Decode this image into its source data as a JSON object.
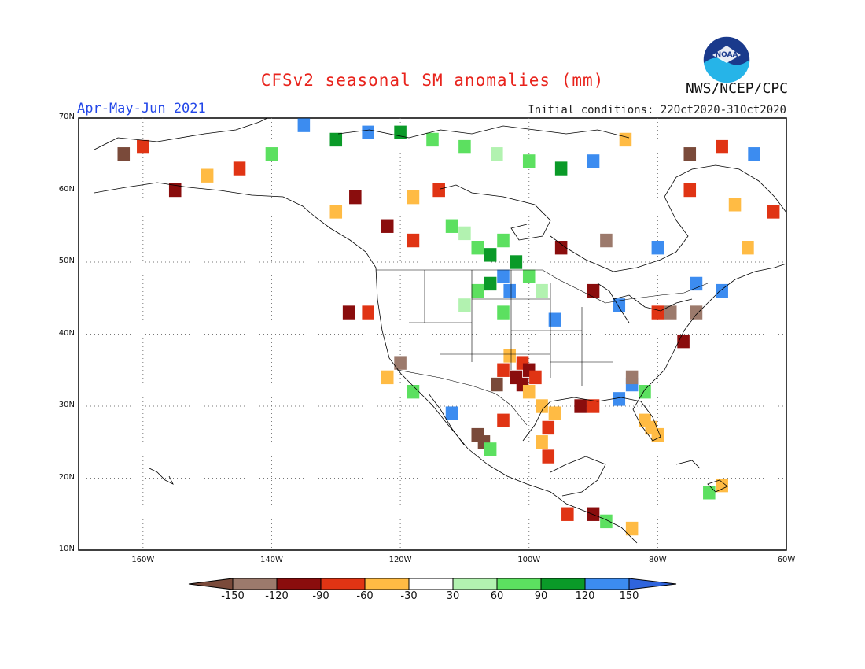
{
  "title": "CFSv2 seasonal SM anomalies (mm)",
  "period": "Apr-May-Jun 2021",
  "initial_conditions": "Initial conditions: 22Oct2020-31Oct2020",
  "organization": "NWS/NCEP/CPC",
  "logo_text": "NOAA",
  "map": {
    "lat_labels": [
      "70N",
      "60N",
      "50N",
      "40N",
      "30N",
      "20N",
      "10N"
    ],
    "lon_labels": [
      "160W",
      "140W",
      "120W",
      "100W",
      "80W",
      "60W"
    ],
    "lat_range": [
      10,
      70
    ],
    "lon_range": [
      -170,
      -60
    ]
  },
  "colorbar": {
    "labels": [
      "-150",
      "-120",
      "-90",
      "-60",
      "-30",
      "30",
      "60",
      "90",
      "120",
      "150"
    ],
    "colors": [
      "#7a4a3a",
      "#9c7a6c",
      "#8a0d0d",
      "#e03414",
      "#ffbb44",
      "#ffffff",
      "#b2f2b0",
      "#5ce060",
      "#0a9a28",
      "#3c8cf0",
      "#2f64dc"
    ]
  },
  "anomaly_cells": [
    {
      "lon": -108,
      "lat": 52,
      "c": "#5ce060"
    },
    {
      "lon": -106,
      "lat": 51,
      "c": "#0a9a28"
    },
    {
      "lon": -104,
      "lat": 53,
      "c": "#5ce060"
    },
    {
      "lon": -110,
      "lat": 54,
      "c": "#b2f2b0"
    },
    {
      "lon": -112,
      "lat": 55,
      "c": "#5ce060"
    },
    {
      "lon": -102,
      "lat": 50,
      "c": "#0a9a28"
    },
    {
      "lon": -100,
      "lat": 48,
      "c": "#5ce060"
    },
    {
      "lon": -104,
      "lat": 48,
      "c": "#3c8cf0"
    },
    {
      "lon": -106,
      "lat": 47,
      "c": "#0a9a28"
    },
    {
      "lon": -108,
      "lat": 46,
      "c": "#5ce060"
    },
    {
      "lon": -103,
      "lat": 46,
      "c": "#3c8cf0"
    },
    {
      "lon": -98,
      "lat": 46,
      "c": "#b2f2b0"
    },
    {
      "lon": -110,
      "lat": 44,
      "c": "#b2f2b0"
    },
    {
      "lon": -96,
      "lat": 42,
      "c": "#3c8cf0"
    },
    {
      "lon": -104,
      "lat": 43,
      "c": "#5ce060"
    },
    {
      "lon": -101,
      "lat": 36,
      "c": "#e03414"
    },
    {
      "lon": -100,
      "lat": 35,
      "c": "#8a0d0d"
    },
    {
      "lon": -102,
      "lat": 34,
      "c": "#8a0d0d"
    },
    {
      "lon": -101,
      "lat": 33,
      "c": "#8a0d0d"
    },
    {
      "lon": -99,
      "lat": 34,
      "c": "#e03414"
    },
    {
      "lon": -100,
      "lat": 32,
      "c": "#ffbb44"
    },
    {
      "lon": -103,
      "lat": 37,
      "c": "#ffbb44"
    },
    {
      "lon": -104,
      "lat": 35,
      "c": "#e03414"
    },
    {
      "lon": -105,
      "lat": 33,
      "c": "#7a4a3a"
    },
    {
      "lon": -98,
      "lat": 30,
      "c": "#ffbb44"
    },
    {
      "lon": -96,
      "lat": 29,
      "c": "#ffbb44"
    },
    {
      "lon": -97,
      "lat": 27,
      "c": "#e03414"
    },
    {
      "lon": -98,
      "lat": 25,
      "c": "#ffbb44"
    },
    {
      "lon": -97,
      "lat": 23,
      "c": "#e03414"
    },
    {
      "lon": -92,
      "lat": 30,
      "c": "#8a0d0d"
    },
    {
      "lon": -90,
      "lat": 30,
      "c": "#e03414"
    },
    {
      "lon": -82,
      "lat": 28,
      "c": "#ffbb44"
    },
    {
      "lon": -81,
      "lat": 27,
      "c": "#ffbb44"
    },
    {
      "lon": -80,
      "lat": 26,
      "c": "#ffbb44"
    },
    {
      "lon": -76,
      "lat": 39,
      "c": "#8a0d0d"
    },
    {
      "lon": -78,
      "lat": 43,
      "c": "#9c7a6c"
    },
    {
      "lon": -74,
      "lat": 43,
      "c": "#9c7a6c"
    },
    {
      "lon": -80,
      "lat": 43,
      "c": "#e03414"
    },
    {
      "lon": -84,
      "lat": 33,
      "c": "#3c8cf0"
    },
    {
      "lon": -86,
      "lat": 31,
      "c": "#3c8cf0"
    },
    {
      "lon": -82,
      "lat": 32,
      "c": "#5ce060"
    },
    {
      "lon": -84,
      "lat": 34,
      "c": "#9c7a6c"
    },
    {
      "lon": -122,
      "lat": 34,
      "c": "#ffbb44"
    },
    {
      "lon": -120,
      "lat": 36,
      "c": "#9c7a6c"
    },
    {
      "lon": -118,
      "lat": 32,
      "c": "#5ce060"
    },
    {
      "lon": -108,
      "lat": 26,
      "c": "#7a4a3a"
    },
    {
      "lon": -107,
      "lat": 25,
      "c": "#7a4a3a"
    },
    {
      "lon": -106,
      "lat": 24,
      "c": "#5ce060"
    },
    {
      "lon": -112,
      "lat": 29,
      "c": "#3c8cf0"
    },
    {
      "lon": -104,
      "lat": 28,
      "c": "#e03414"
    },
    {
      "lon": -94,
      "lat": 15,
      "c": "#e03414"
    },
    {
      "lon": -90,
      "lat": 15,
      "c": "#8a0d0d"
    },
    {
      "lon": -88,
      "lat": 14,
      "c": "#5ce060"
    },
    {
      "lon": -84,
      "lat": 13,
      "c": "#ffbb44"
    },
    {
      "lon": -155,
      "lat": 60,
      "c": "#8a0d0d"
    },
    {
      "lon": -150,
      "lat": 62,
      "c": "#ffbb44"
    },
    {
      "lon": -145,
      "lat": 63,
      "c": "#e03414"
    },
    {
      "lon": -160,
      "lat": 66,
      "c": "#e03414"
    },
    {
      "lon": -163,
      "lat": 65,
      "c": "#7a4a3a"
    },
    {
      "lon": -140,
      "lat": 65,
      "c": "#5ce060"
    },
    {
      "lon": -135,
      "lat": 69,
      "c": "#3c8cf0"
    },
    {
      "lon": -130,
      "lat": 67,
      "c": "#0a9a28"
    },
    {
      "lon": -125,
      "lat": 68,
      "c": "#3c8cf0"
    },
    {
      "lon": -120,
      "lat": 68,
      "c": "#0a9a28"
    },
    {
      "lon": -115,
      "lat": 67,
      "c": "#5ce060"
    },
    {
      "lon": -110,
      "lat": 66,
      "c": "#5ce060"
    },
    {
      "lon": -105,
      "lat": 65,
      "c": "#b2f2b0"
    },
    {
      "lon": -100,
      "lat": 64,
      "c": "#5ce060"
    },
    {
      "lon": -95,
      "lat": 63,
      "c": "#0a9a28"
    },
    {
      "lon": -90,
      "lat": 64,
      "c": "#3c8cf0"
    },
    {
      "lon": -85,
      "lat": 67,
      "c": "#ffbb44"
    },
    {
      "lon": -75,
      "lat": 65,
      "c": "#7a4a3a"
    },
    {
      "lon": -70,
      "lat": 66,
      "c": "#e03414"
    },
    {
      "lon": -65,
      "lat": 65,
      "c": "#3c8cf0"
    },
    {
      "lon": -75,
      "lat": 60,
      "c": "#e03414"
    },
    {
      "lon": -68,
      "lat": 58,
      "c": "#ffbb44"
    },
    {
      "lon": -62,
      "lat": 57,
      "c": "#e03414"
    },
    {
      "lon": -66,
      "lat": 52,
      "c": "#ffbb44"
    },
    {
      "lon": -80,
      "lat": 52,
      "c": "#3c8cf0"
    },
    {
      "lon": -88,
      "lat": 53,
      "c": "#9c7a6c"
    },
    {
      "lon": -95,
      "lat": 52,
      "c": "#8a0d0d"
    },
    {
      "lon": -118,
      "lat": 53,
      "c": "#e03414"
    },
    {
      "lon": -122,
      "lat": 55,
      "c": "#8a0d0d"
    },
    {
      "lon": -130,
      "lat": 57,
      "c": "#ffbb44"
    },
    {
      "lon": -127,
      "lat": 59,
      "c": "#8a0d0d"
    },
    {
      "lon": -118,
      "lat": 59,
      "c": "#ffbb44"
    },
    {
      "lon": -114,
      "lat": 60,
      "c": "#e03414"
    },
    {
      "lon": -128,
      "lat": 43,
      "c": "#8a0d0d"
    },
    {
      "lon": -125,
      "lat": 43,
      "c": "#e03414"
    },
    {
      "lon": -90,
      "lat": 46,
      "c": "#8a0d0d"
    },
    {
      "lon": -86,
      "lat": 44,
      "c": "#3c8cf0"
    },
    {
      "lon": -74,
      "lat": 47,
      "c": "#3c8cf0"
    },
    {
      "lon": -70,
      "lat": 46,
      "c": "#3c8cf0"
    },
    {
      "lon": -72,
      "lat": 18,
      "c": "#5ce060"
    },
    {
      "lon": -70,
      "lat": 19,
      "c": "#ffbb44"
    }
  ]
}
